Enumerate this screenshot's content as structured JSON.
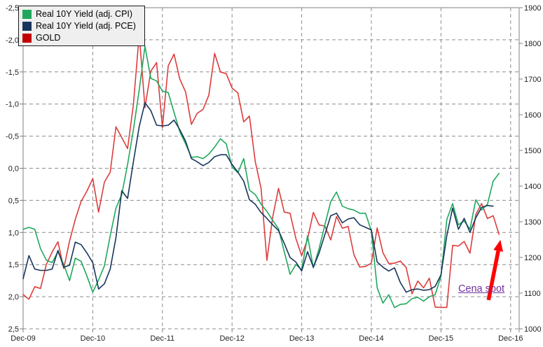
{
  "chart_data": {
    "type": "line",
    "title": "",
    "x_axis": {
      "tick_labels": [
        "Dec-09",
        "Dec-10",
        "Dec-11",
        "Dec-12",
        "Dec-13",
        "Dec-14",
        "Dec-15",
        "Dec-16"
      ],
      "months_per_tick": 12,
      "total_months": 84
    },
    "left_axis": {
      "min": -2.5,
      "max": 2.5,
      "step": 0.5,
      "orientation": "negative values at top",
      "tick_labels": [
        "-2,5",
        "-2,0",
        "-1,5",
        "-1,0",
        "-0,5",
        "0,0",
        "0,5",
        "1,0",
        "1,5",
        "2,0",
        "2,5"
      ]
    },
    "right_axis": {
      "min": 1000,
      "max": 1900,
      "step": 100,
      "tick_labels": [
        "1900",
        "1800",
        "1700",
        "1600",
        "1500",
        "1400",
        "1300",
        "1200",
        "1100",
        "1000"
      ]
    },
    "grid": true,
    "legend_position": "top-left",
    "series": [
      {
        "name": "Real 10Y Yield (adj. CPI)",
        "axis": "left",
        "color": "#1fa85c",
        "start_month": 0,
        "values": [
          0.95,
          0.92,
          0.95,
          1.25,
          1.43,
          1.47,
          1.3,
          1.5,
          1.75,
          1.4,
          1.45,
          1.68,
          1.93,
          1.74,
          1.52,
          1.05,
          0.62,
          0.41,
          -0.06,
          -0.6,
          -1.22,
          -1.9,
          -1.4,
          -1.36,
          -1.2,
          -1.18,
          -0.87,
          -0.57,
          -0.38,
          -0.17,
          -0.18,
          -0.15,
          -0.22,
          -0.33,
          -0.46,
          -0.38,
          -0.02,
          0.07,
          -0.15,
          0.34,
          0.41,
          0.56,
          0.67,
          0.81,
          0.94,
          1.3,
          1.65,
          1.5,
          1.58,
          1.05,
          1.55,
          1.25,
          0.88,
          0.52,
          0.37,
          0.59,
          0.63,
          0.65,
          0.7,
          0.7,
          0.98,
          1.86,
          2.1,
          1.97,
          2.17,
          2.12,
          2.11,
          2.03,
          2.01,
          2.07,
          2.0,
          1.97,
          1.68,
          0.8,
          0.55,
          0.88,
          0.82,
          0.95,
          0.49,
          0.65,
          0.56,
          0.2,
          0.08
        ]
      },
      {
        "name": "Real 10Y Yield (adj. PCE)",
        "axis": "left",
        "color": "#17365d",
        "start_month": 0,
        "values": [
          1.72,
          1.36,
          1.57,
          1.59,
          1.59,
          1.57,
          1.28,
          1.54,
          1.51,
          1.15,
          1.19,
          1.32,
          1.47,
          1.88,
          1.8,
          1.57,
          1.08,
          0.35,
          0.47,
          -0.1,
          -0.65,
          -1.02,
          -0.9,
          -0.67,
          -0.66,
          -0.67,
          -0.75,
          -0.6,
          -0.42,
          -0.15,
          -0.1,
          -0.04,
          -0.09,
          -0.18,
          -0.21,
          -0.21,
          -0.06,
          0.06,
          0.2,
          0.49,
          0.56,
          0.69,
          0.78,
          0.88,
          0.97,
          1.17,
          1.39,
          1.46,
          1.6,
          1.3,
          1.54,
          1.32,
          1.03,
          0.74,
          0.7,
          0.85,
          0.79,
          0.77,
          0.88,
          0.92,
          0.96,
          1.46,
          1.54,
          1.6,
          1.55,
          1.78,
          1.93,
          1.89,
          1.88,
          1.9,
          1.89,
          1.84,
          1.66,
          1.05,
          0.62,
          0.95,
          0.78,
          1.0,
          0.77,
          0.61,
          0.58,
          0.59
        ]
      },
      {
        "name": "GOLD",
        "axis": "right",
        "color": "#dd3c3c",
        "legend_color": "#c00000",
        "start_month": 0,
        "values": [
          1096,
          1083,
          1118,
          1113,
          1180,
          1215,
          1244,
          1169,
          1246,
          1307,
          1357,
          1386,
          1421,
          1327,
          1411,
          1439,
          1566,
          1536,
          1505,
          1628,
          1826,
          1620,
          1722,
          1746,
          1564,
          1737,
          1770,
          1700,
          1664,
          1573,
          1604,
          1615,
          1655,
          1772,
          1720,
          1715,
          1675,
          1661,
          1580,
          1596,
          1469,
          1394,
          1192,
          1313,
          1394,
          1327,
          1324,
          1253,
          1205,
          1251,
          1326,
          1291,
          1288,
          1249,
          1315,
          1282,
          1287,
          1208,
          1173,
          1175,
          1184,
          1283,
          1213,
          1183,
          1184,
          1190,
          1172,
          1098,
          1134,
          1115,
          1142,
          1061,
          1060,
          1060,
          1234,
          1232,
          1245,
          1212,
          1320,
          1351,
          1309,
          1317,
          1265
        ]
      }
    ],
    "annotation": {
      "text": "Cena spot",
      "color": "#7030a0",
      "arrow_color": "#fe0000",
      "points_to": "last GOLD value"
    }
  },
  "legend": {
    "swatch_colors": [
      "#1fa85c",
      "#17365d",
      "#c00000"
    ]
  },
  "style": {
    "grid_color": "#8c8c8c",
    "axis_color": "#808080",
    "tick_label_color": "#222222"
  }
}
